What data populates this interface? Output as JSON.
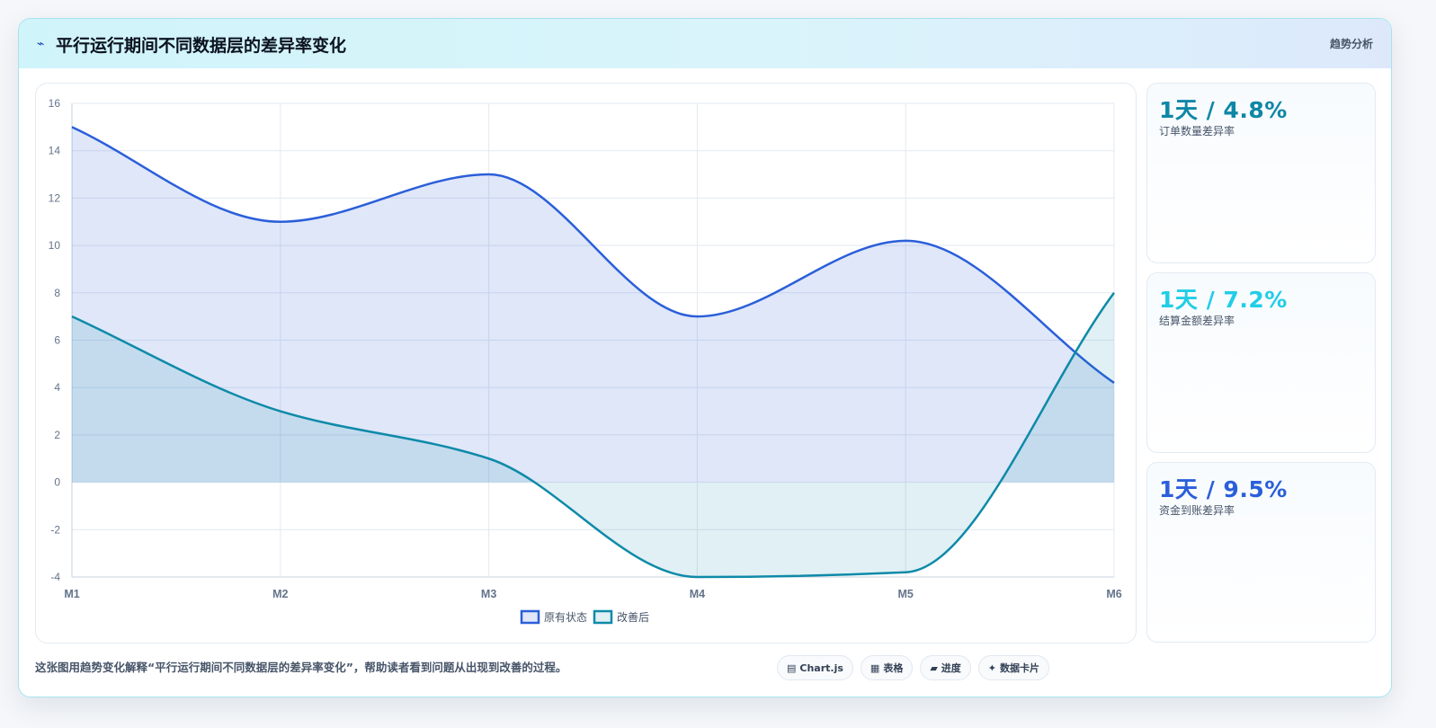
{
  "header": {
    "icon": "bolt-icon",
    "title": "平行运行期间不同数据层的差异率变化",
    "tag": "趋势分析"
  },
  "chart_data": {
    "type": "line",
    "categories": [
      "M1",
      "M2",
      "M3",
      "M4",
      "M5",
      "M6"
    ],
    "ylim": [
      -4,
      16
    ],
    "yticks": [
      "16",
      "14",
      "12",
      "10",
      "8",
      "6",
      "4",
      "2",
      "0",
      "-2",
      "-4"
    ],
    "grid": true,
    "fill": true,
    "legend_position": "bottom",
    "series": [
      {
        "name": "原有状态",
        "color": "#2b5fd9",
        "fill": "rgba(43,95,217,0.15)",
        "values": [
          15,
          11,
          13,
          7,
          10.2,
          4.2
        ]
      },
      {
        "name": "改善后",
        "color": "#0e8aa8",
        "fill": "rgba(14,138,168,0.13)",
        "values": [
          7,
          3,
          1,
          -4,
          -3.8,
          8
        ]
      }
    ]
  },
  "kpis": [
    {
      "value": "1天 / 4.8%",
      "label": "订单数量差异率",
      "color": "#0e87a6"
    },
    {
      "value": "1天 / 7.2%",
      "label": "结算金额差异率",
      "color": "#22cde6"
    },
    {
      "value": "1天 / 9.5%",
      "label": "资金到账差异率",
      "color": "#2b5fd9"
    }
  ],
  "footer": {
    "text": "这张图用趋势变化解释“平行运行期间不同数据层的差异率变化”，帮助读者看到问题从出现到改善的过程。",
    "chips": [
      {
        "icon": "chart-icon",
        "glyph": "▤",
        "label": "Chart.js"
      },
      {
        "icon": "table-icon",
        "glyph": "▦",
        "label": "表格"
      },
      {
        "icon": "progress-icon",
        "glyph": "▰",
        "label": "进度"
      },
      {
        "icon": "sparkle-icon",
        "glyph": "✦",
        "label": "数据卡片"
      }
    ]
  }
}
